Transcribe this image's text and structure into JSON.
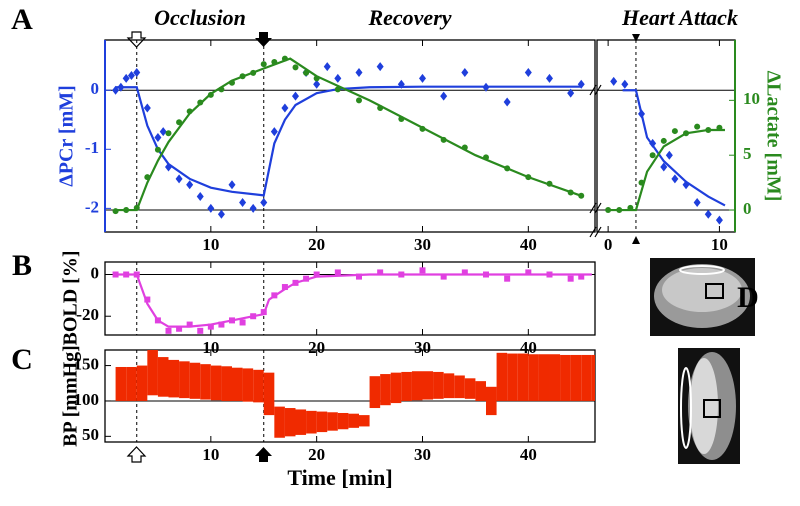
{
  "chart_data": [
    {
      "type": "line",
      "panel": "A",
      "ylabel": "ΔPCr [mM]",
      "annotations": [
        "Occlusion",
        "Recovery"
      ],
      "xlim": [
        0,
        46.3
      ],
      "xticks": [
        10,
        20,
        30,
        40
      ],
      "ylim": [
        -2.4,
        0.85
      ],
      "yticks": [
        0,
        -1,
        -2
      ],
      "y2lim": [
        -2,
        15.5
      ],
      "hlines": [
        0
      ],
      "y2hlines": [
        0
      ],
      "events": [
        3,
        15
      ],
      "ycolor": "#1f3fdc",
      "series": [
        {
          "style": "markers",
          "marker": "diamond",
          "color": "#1f3fdc",
          "x": [
            1,
            1.5,
            2,
            2.5,
            3,
            4,
            5,
            5.5,
            6,
            7,
            8,
            9,
            10,
            11,
            12,
            13,
            14,
            15,
            16,
            17,
            18,
            19,
            20,
            21,
            22,
            24,
            26,
            28,
            30,
            32,
            34,
            36,
            38,
            40,
            42,
            44,
            45
          ],
          "values": [
            0,
            0.05,
            0.2,
            0.25,
            0.3,
            -0.3,
            -0.8,
            -0.7,
            -1.3,
            -1.5,
            -1.6,
            -1.8,
            -2.0,
            -2.1,
            -1.6,
            -1.9,
            -2.0,
            -1.9,
            -0.7,
            -0.3,
            -0.1,
            0.3,
            0.1,
            0.4,
            0.2,
            0.3,
            0.4,
            0.1,
            0.2,
            -0.1,
            0.3,
            0.05,
            -0.2,
            0.3,
            0.2,
            -0.05,
            0.1
          ]
        },
        {
          "style": "line",
          "color": "#1f3fdc",
          "x": [
            1,
            3,
            4,
            5,
            6,
            8,
            10,
            12,
            15,
            16,
            17,
            18,
            20,
            22,
            25,
            30,
            35,
            40,
            45
          ],
          "values": [
            0.05,
            0.05,
            -0.6,
            -1.0,
            -1.25,
            -1.5,
            -1.65,
            -1.72,
            -1.78,
            -0.9,
            -0.5,
            -0.25,
            -0.05,
            0.02,
            0.05,
            0.06,
            0.06,
            0.06,
            0.06
          ]
        },
        {
          "style": "markers",
          "marker": "circle",
          "color": "#2a8a1e",
          "axis": "y2",
          "x": [
            1,
            2,
            3,
            4,
            5,
            6,
            7,
            8,
            9,
            10,
            11,
            12,
            13,
            14,
            15,
            16,
            17,
            18,
            19,
            20,
            22,
            24,
            26,
            28,
            30,
            32,
            34,
            36,
            38,
            40,
            42,
            44,
            45
          ],
          "values": [
            -0.1,
            0,
            0.2,
            3,
            5.5,
            7,
            8,
            9,
            9.8,
            10.5,
            11,
            11.6,
            12.2,
            12.5,
            13.3,
            13.5,
            13.8,
            13,
            12.5,
            12,
            11,
            10,
            9.3,
            8.3,
            7.4,
            6.4,
            5.7,
            4.8,
            3.8,
            3,
            2.4,
            1.6,
            1.3
          ]
        },
        {
          "style": "line",
          "color": "#2a8a1e",
          "axis": "y2",
          "x": [
            1,
            3,
            4,
            5,
            6,
            8,
            10,
            12,
            15,
            17.5,
            20,
            25,
            30,
            35,
            40,
            45
          ],
          "values": [
            0,
            0,
            2.5,
            4.5,
            6.2,
            8.8,
            10.6,
            11.8,
            12.9,
            13.8,
            12.2,
            10,
            7.5,
            5,
            3,
            1.3
          ]
        }
      ]
    },
    {
      "type": "line",
      "y2label": "ΔLactate [mM]",
      "annotations": [
        "Heart Attack"
      ],
      "xlim": [
        -1,
        11.4
      ],
      "xticks": [
        0,
        10
      ],
      "ylim": [
        -2.4,
        0.85
      ],
      "y2lim": [
        -2,
        15.5
      ],
      "y2ticks": [
        0,
        5,
        10
      ],
      "hlines": [
        0
      ],
      "y2hlines": [
        0
      ],
      "events": [
        2.5
      ],
      "y2color": "#2a8a1e",
      "series": [
        {
          "style": "markers",
          "marker": "diamond",
          "color": "#1f3fdc",
          "x": [
            0.5,
            1.5,
            3,
            4,
            5,
            5.5,
            6,
            7,
            8,
            9,
            10
          ],
          "values": [
            0.15,
            0.1,
            -0.4,
            -0.9,
            -1.3,
            -1.1,
            -1.5,
            -1.6,
            -1.9,
            -2.1,
            -2.2
          ]
        },
        {
          "style": "line",
          "color": "#1f3fdc",
          "x": [
            1.3,
            2.5,
            3.5,
            5,
            7,
            9,
            10.5
          ],
          "values": [
            0,
            0,
            -0.8,
            -1.2,
            -1.55,
            -1.8,
            -1.95
          ]
        },
        {
          "style": "markers",
          "marker": "circle",
          "color": "#2a8a1e",
          "axis": "y2",
          "x": [
            0,
            1,
            2,
            3,
            4,
            5,
            6,
            7,
            8,
            9,
            10
          ],
          "values": [
            0,
            0,
            0.2,
            2.5,
            5,
            6.3,
            7.2,
            7,
            7.6,
            7.3,
            7.5
          ]
        },
        {
          "style": "line",
          "color": "#2a8a1e",
          "axis": "y2",
          "x": [
            0,
            2.5,
            3.5,
            5,
            7,
            9,
            10.5
          ],
          "values": [
            0,
            0,
            3.5,
            5.8,
            7,
            7.3,
            7.3
          ]
        }
      ]
    },
    {
      "type": "line",
      "panel": "B",
      "ylabel": "BOLD [%]",
      "xlim": [
        0,
        46.3
      ],
      "xticks": [
        10,
        20,
        30,
        40
      ],
      "ylim": [
        -29,
        6
      ],
      "yticks": [
        0,
        -20
      ],
      "hlines": [
        0
      ],
      "events": [
        3,
        15
      ],
      "series": [
        {
          "style": "markers",
          "marker": "square",
          "color": "#e040e0",
          "x": [
            1,
            2,
            3,
            4,
            5,
            6,
            7,
            8,
            9,
            10,
            11,
            12,
            13,
            14,
            15,
            16,
            17,
            18,
            19,
            20,
            22,
            24,
            26,
            28,
            30,
            32,
            34,
            36,
            38,
            40,
            42,
            44,
            45
          ],
          "values": [
            0,
            0,
            0,
            -12,
            -22,
            -27,
            -26,
            -24,
            -27,
            -25,
            -24,
            -22,
            -23,
            -20,
            -18,
            -10,
            -6,
            -4,
            -2,
            0,
            1,
            -1,
            1,
            0,
            2,
            -1,
            1,
            0,
            -2,
            1,
            0,
            -2,
            -1
          ]
        },
        {
          "style": "line",
          "color": "#e040e0",
          "x": [
            1,
            3,
            4,
            5,
            6,
            8,
            10,
            12,
            15,
            15.5,
            17,
            18,
            20,
            25,
            30,
            40,
            46
          ],
          "values": [
            0,
            0,
            -14,
            -22,
            -25,
            -25,
            -24,
            -22,
            -19,
            -12,
            -7,
            -4,
            -1,
            0,
            0,
            0,
            0
          ]
        }
      ]
    },
    {
      "type": "area",
      "panel": "C",
      "ylabel": "BP [mmHg]",
      "xlabel": "Time [min]",
      "xlim": [
        0,
        46.3
      ],
      "xticks": [
        10,
        20,
        30,
        40
      ],
      "ylim": [
        42,
        172
      ],
      "yticks": [
        50,
        100,
        150
      ],
      "hlines": [
        100
      ],
      "events": [
        3,
        15
      ],
      "series": [
        {
          "color": "#f02a00",
          "x": [
            1,
            2,
            3,
            4,
            5,
            6,
            7,
            8,
            9,
            10,
            11,
            12,
            13,
            14,
            15,
            16,
            17,
            18,
            19,
            20,
            21,
            22,
            23,
            24,
            25,
            26,
            27,
            28,
            29,
            30,
            31,
            32,
            33,
            34,
            35,
            36,
            37,
            38,
            39,
            40,
            41,
            42,
            43,
            44,
            45,
            46
          ],
          "high": [
            148,
            148,
            150,
            172,
            162,
            158,
            156,
            154,
            152,
            150,
            149,
            147,
            146,
            144,
            140,
            92,
            90,
            88,
            86,
            85,
            84,
            83,
            82,
            80,
            135,
            138,
            140,
            141,
            142,
            142,
            141,
            139,
            136,
            132,
            128,
            120,
            168,
            167,
            167,
            166,
            166,
            166,
            165,
            165,
            165,
            165
          ],
          "low": [
            100,
            100,
            100,
            108,
            106,
            105,
            104,
            103,
            102,
            101,
            100,
            100,
            99,
            98,
            80,
            48,
            50,
            52,
            54,
            56,
            58,
            60,
            62,
            64,
            90,
            94,
            97,
            100,
            101,
            102,
            103,
            104,
            104,
            103,
            100,
            80,
            100,
            100,
            100,
            100,
            100,
            100,
            100,
            100,
            100,
            100
          ]
        }
      ]
    },
    {
      "type": "image",
      "panel": "D"
    }
  ]
}
